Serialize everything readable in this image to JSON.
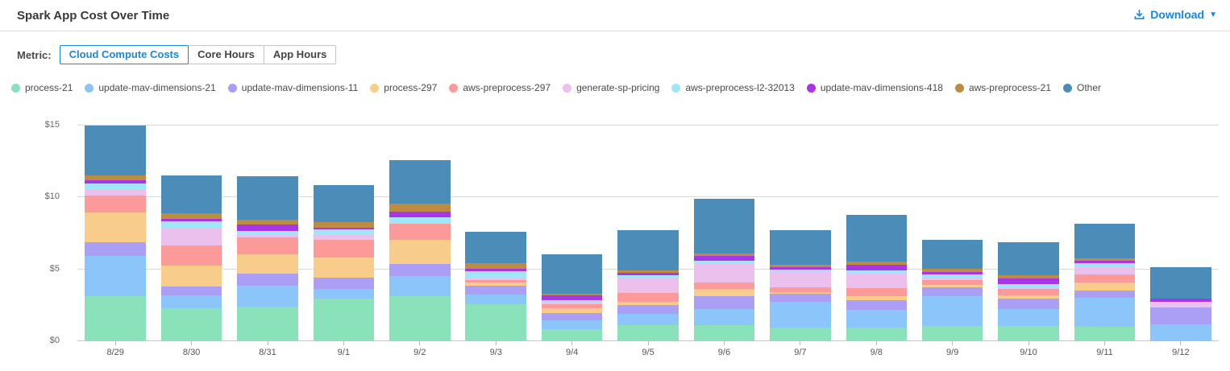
{
  "header": {
    "title": "Spark App Cost Over Time",
    "download_label": "Download"
  },
  "metric": {
    "label": "Metric:",
    "options": [
      "Cloud Compute Costs",
      "Core Hours",
      "App Hours"
    ],
    "selected": "Cloud Compute Costs"
  },
  "colors": {
    "accent_blue": "#1987e0",
    "title_text": "#3a3a3a",
    "axis_text": "#666666",
    "gridline": "#dadada"
  },
  "chart_data": {
    "type": "bar",
    "stacked": true,
    "title": "Spark App Cost Over Time",
    "xlabel": "",
    "ylabel": "",
    "ylim": [
      0,
      15
    ],
    "grid": true,
    "legend_position": "top",
    "yticks": [
      {
        "value": 0,
        "label": "$0"
      },
      {
        "value": 5,
        "label": "$5"
      },
      {
        "value": 10,
        "label": "$10"
      },
      {
        "value": 15,
        "label": "$15"
      }
    ],
    "categories": [
      "8/29",
      "8/30",
      "8/31",
      "9/1",
      "9/2",
      "9/3",
      "9/4",
      "9/5",
      "9/6",
      "9/7",
      "9/8",
      "9/9",
      "9/10",
      "9/11",
      "9/12"
    ],
    "series": [
      {
        "name": "process-21",
        "color": "#8ae2bb",
        "values": [
          3.13,
          2.29,
          2.43,
          2.99,
          3.16,
          2.56,
          0.83,
          1.12,
          1.12,
          0.93,
          0.93,
          1.08,
          1.08,
          0.99,
          0.0
        ]
      },
      {
        "name": "update-mav-dimensions-21",
        "color": "#8cc5f9",
        "values": [
          2.8,
          0.88,
          1.45,
          0.67,
          1.4,
          0.7,
          0.65,
          0.8,
          1.12,
          1.83,
          1.23,
          2.05,
          1.16,
          2.05,
          1.18
        ]
      },
      {
        "name": "update-mav-dimensions-11",
        "color": "#ab9ef5",
        "values": [
          0.97,
          0.62,
          0.8,
          0.78,
          0.84,
          0.61,
          0.47,
          0.62,
          0.89,
          0.52,
          0.69,
          0.6,
          0.71,
          0.47,
          1.18
        ]
      },
      {
        "name": "process-297",
        "color": "#f8cd8c",
        "values": [
          2.06,
          1.49,
          1.35,
          1.36,
          1.68,
          0.23,
          0.37,
          0.22,
          0.53,
          0.13,
          0.28,
          0.19,
          0.22,
          0.59,
          0.0
        ]
      },
      {
        "name": "aws-preprocess-297",
        "color": "#fb9a99",
        "values": [
          1.17,
          1.4,
          1.17,
          1.25,
          1.12,
          0.14,
          0.28,
          0.6,
          0.44,
          0.37,
          0.56,
          0.34,
          0.49,
          0.52,
          0.0
        ]
      },
      {
        "name": "generate-sp-pricing",
        "color": "#ecc0ed",
        "values": [
          0.41,
          1.16,
          0.22,
          0.34,
          0.0,
          0.14,
          0.13,
          1.04,
          1.27,
          1.06,
          1.09,
          0.15,
          0.08,
          0.52,
          0.41
        ]
      },
      {
        "name": "aws-preprocess-l2-32013",
        "color": "#a0e5fa",
        "values": [
          0.43,
          0.52,
          0.25,
          0.37,
          0.44,
          0.52,
          0.13,
          0.22,
          0.23,
          0.15,
          0.13,
          0.22,
          0.24,
          0.32,
          0.0
        ]
      },
      {
        "name": "update-mav-dimensions-418",
        "color": "#a935e8",
        "values": [
          0.22,
          0.15,
          0.46,
          0.13,
          0.4,
          0.16,
          0.32,
          0.15,
          0.33,
          0.15,
          0.43,
          0.19,
          0.37,
          0.13,
          0.22
        ]
      },
      {
        "name": "aws-preprocess-21",
        "color": "#bd8c42",
        "values": [
          0.37,
          0.41,
          0.32,
          0.37,
          0.56,
          0.4,
          0.15,
          0.16,
          0.19,
          0.17,
          0.18,
          0.22,
          0.24,
          0.18,
          0.0
        ]
      },
      {
        "name": "Other",
        "color": "#4c8cb8",
        "values": [
          3.44,
          2.61,
          3.04,
          2.62,
          3.02,
          2.18,
          2.74,
          2.82,
          3.81,
          2.44,
          3.25,
          2.01,
          2.31,
          2.43,
          2.16
        ]
      }
    ]
  }
}
